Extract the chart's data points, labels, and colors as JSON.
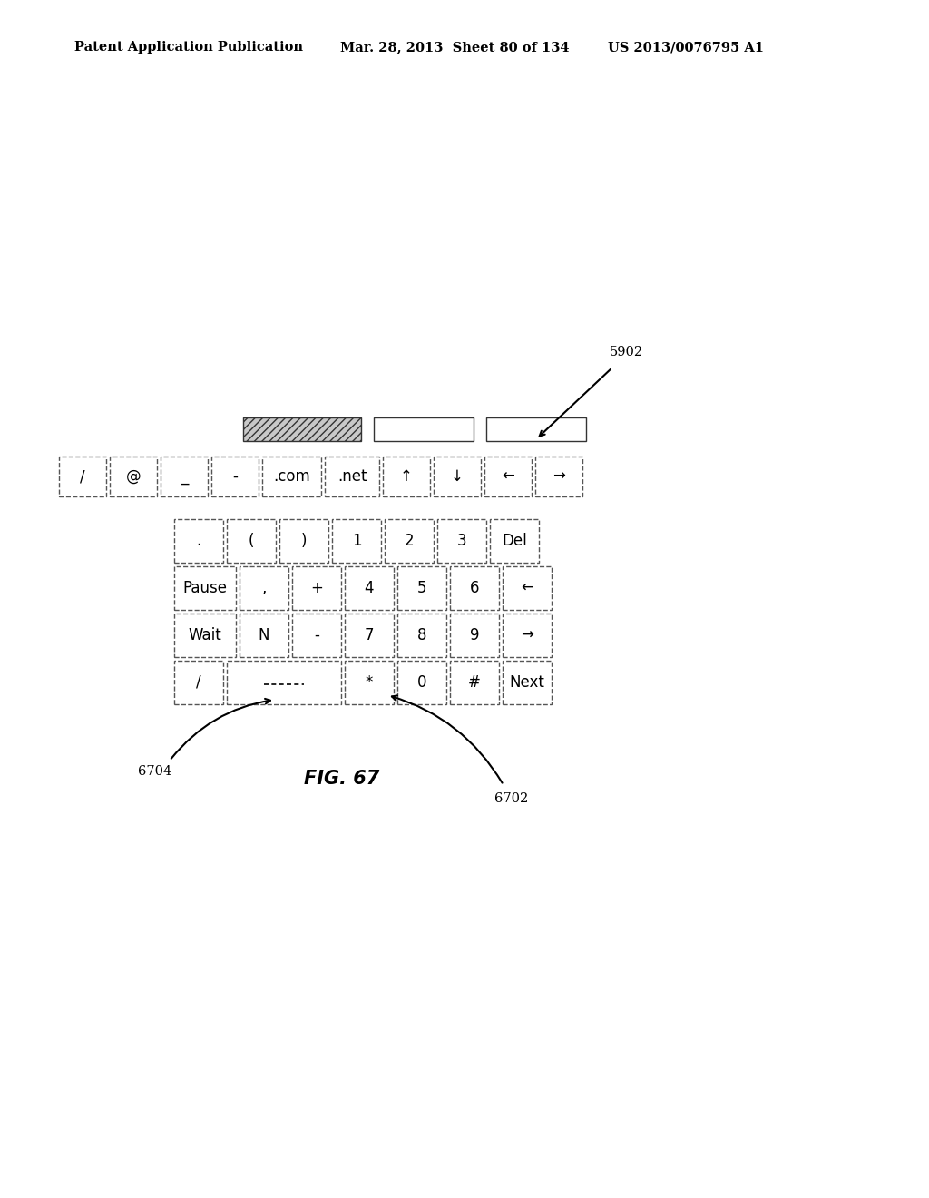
{
  "title_left": "Patent Application Publication",
  "title_mid": "Mar. 28, 2013  Sheet 80 of 134",
  "title_right": "US 2013/0076795 A1",
  "fig_label": "FIG. 67",
  "label_5902": "5902",
  "label_6702": "6702",
  "label_6704": "6704",
  "top_row_keys": [
    "/",
    "@",
    "_",
    "-",
    ".com",
    ".net",
    "↑",
    "↓",
    "←",
    "→"
  ],
  "numpad_row0": [
    ".",
    "(",
    ")",
    "1",
    "2",
    "3",
    "Del"
  ],
  "numpad_row1": [
    "Pause",
    ",",
    "+",
    "4",
    "5",
    "6",
    "←"
  ],
  "numpad_row2": [
    "Wait",
    "N",
    "-",
    "7",
    "8",
    "9",
    "→"
  ],
  "numpad_row3_a": [
    "/"
  ],
  "numpad_row3_b": [
    "*",
    "0",
    "#",
    "Next"
  ],
  "background": "#ffffff",
  "key_border_color": "#555555",
  "key_fill": "#ffffff",
  "font_color": "#000000",
  "hatch_fill": "#d0d0d0",
  "header_font_size": 10.5,
  "key_font_size": 12,
  "fig_font_size": 15,
  "label_font_size": 10.5
}
